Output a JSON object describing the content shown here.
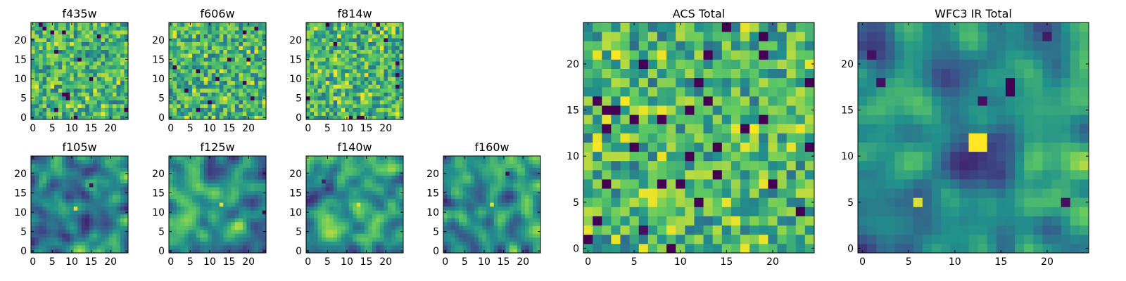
{
  "chart_data": [
    {
      "type": "heatmap",
      "title": "f435w",
      "xticks": [
        0,
        5,
        10,
        15,
        20
      ],
      "yticks": [
        0,
        5,
        10,
        15,
        20
      ],
      "xlim": [
        0,
        25
      ],
      "ylim": [
        0,
        25
      ],
      "grid_size": 25,
      "texture": "noisy",
      "seed": 11,
      "features": []
    },
    {
      "type": "heatmap",
      "title": "f606w",
      "xticks": [
        0,
        5,
        10,
        15,
        20
      ],
      "yticks": [
        0,
        5,
        10,
        15,
        20
      ],
      "xlim": [
        0,
        25
      ],
      "ylim": [
        0,
        25
      ],
      "grid_size": 25,
      "texture": "noisy",
      "seed": 23,
      "features": []
    },
    {
      "type": "heatmap",
      "title": "f814w",
      "xticks": [
        0,
        5,
        10,
        15,
        20
      ],
      "yticks": [
        0,
        5,
        10,
        15,
        20
      ],
      "xlim": [
        0,
        25
      ],
      "ylim": [
        0,
        25
      ],
      "grid_size": 25,
      "texture": "noisy",
      "seed": 37,
      "features": []
    },
    {
      "type": "heatmap",
      "title": "f105w",
      "xticks": [
        0,
        5,
        10,
        15,
        20
      ],
      "yticks": [
        0,
        5,
        10,
        15,
        20
      ],
      "xlim": [
        0,
        25
      ],
      "ylim": [
        0,
        25
      ],
      "grid_size": 25,
      "texture": "smooth",
      "seed": 41,
      "features": [
        {
          "x": 11,
          "y": 11,
          "value": 0.95
        },
        {
          "x": 15,
          "y": 17,
          "value": 0.05
        }
      ]
    },
    {
      "type": "heatmap",
      "title": "f125w",
      "xticks": [
        0,
        5,
        10,
        15,
        20
      ],
      "yticks": [
        0,
        5,
        10,
        15,
        20
      ],
      "xlim": [
        0,
        25
      ],
      "ylim": [
        0,
        25
      ],
      "grid_size": 25,
      "texture": "smooth",
      "seed": 53,
      "features": [
        {
          "x": 13,
          "y": 12,
          "value": 0.95
        },
        {
          "x": 24,
          "y": 10,
          "value": 0.08
        }
      ]
    },
    {
      "type": "heatmap",
      "title": "f140w",
      "xticks": [
        0,
        5,
        10,
        15,
        20
      ],
      "yticks": [
        0,
        5,
        10,
        15,
        20
      ],
      "xlim": [
        0,
        25
      ],
      "ylim": [
        0,
        25
      ],
      "grid_size": 25,
      "texture": "smooth",
      "seed": 67,
      "features": [
        {
          "x": 13,
          "y": 12,
          "value": 0.95
        },
        {
          "x": 4,
          "y": 18,
          "value": 0.1
        }
      ]
    },
    {
      "type": "heatmap",
      "title": "f160w",
      "xticks": [
        0,
        5,
        10,
        15,
        20
      ],
      "yticks": [
        0,
        5,
        10,
        15,
        20
      ],
      "xlim": [
        0,
        25
      ],
      "ylim": [
        0,
        25
      ],
      "grid_size": 25,
      "texture": "smooth",
      "seed": 79,
      "features": [
        {
          "x": 12,
          "y": 12,
          "value": 0.95
        },
        {
          "x": 16,
          "y": 20,
          "value": 0.05
        }
      ]
    },
    {
      "type": "heatmap",
      "title": "ACS Total",
      "xticks": [
        0,
        5,
        10,
        15,
        20
      ],
      "yticks": [
        0,
        5,
        10,
        15,
        20
      ],
      "xlim": [
        0,
        25
      ],
      "ylim": [
        0,
        25
      ],
      "grid_size": 25,
      "texture": "noisy",
      "seed": 97,
      "features": [
        {
          "x": 3,
          "y": 15,
          "value": 0.0
        },
        {
          "x": 5,
          "y": 14,
          "value": 0.0
        },
        {
          "x": 2,
          "y": 13,
          "value": 0.0
        },
        {
          "x": 19,
          "y": 14,
          "value": 0.0
        },
        {
          "x": 12,
          "y": 18,
          "value": 0.0
        },
        {
          "x": 2,
          "y": 7,
          "value": 0.0
        },
        {
          "x": 8,
          "y": 7,
          "value": 0.0
        },
        {
          "x": 10,
          "y": 7,
          "value": 0.0
        },
        {
          "x": 12,
          "y": 5,
          "value": 0.0
        },
        {
          "x": 1,
          "y": 3,
          "value": 0.0
        },
        {
          "x": 6,
          "y": 2,
          "value": 0.05
        },
        {
          "x": 1,
          "y": 11,
          "value": 1.0
        },
        {
          "x": 3,
          "y": 21,
          "value": 1.0
        },
        {
          "x": 4,
          "y": 16,
          "value": 1.0
        },
        {
          "x": 18,
          "y": 13,
          "value": 1.0
        }
      ]
    },
    {
      "type": "heatmap",
      "title": "WFC3 IR Total",
      "xticks": [
        0,
        5,
        10,
        15,
        20
      ],
      "yticks": [
        0,
        5,
        10,
        15,
        20
      ],
      "xlim": [
        0,
        25
      ],
      "ylim": [
        0,
        25
      ],
      "grid_size": 25,
      "texture": "smooth",
      "seed": 109,
      "features": [
        {
          "x": 12,
          "y": 11,
          "value": 1.0
        },
        {
          "x": 13,
          "y": 11,
          "value": 1.0
        },
        {
          "x": 12,
          "y": 12,
          "value": 1.0
        },
        {
          "x": 13,
          "y": 12,
          "value": 1.0
        },
        {
          "x": 6,
          "y": 5,
          "value": 0.95
        },
        {
          "x": 16,
          "y": 17,
          "value": 0.0
        },
        {
          "x": 16,
          "y": 18,
          "value": 0.0
        },
        {
          "x": 13,
          "y": 16,
          "value": 0.05
        },
        {
          "x": 1,
          "y": 21,
          "value": 0.05
        },
        {
          "x": 2,
          "y": 18,
          "value": 0.05
        },
        {
          "x": 22,
          "y": 5,
          "value": 0.05
        },
        {
          "x": 20,
          "y": 23,
          "value": 0.08
        }
      ]
    }
  ],
  "colormap": [
    "#440154",
    "#3b528b",
    "#21918c",
    "#5ec962",
    "#fde725"
  ]
}
